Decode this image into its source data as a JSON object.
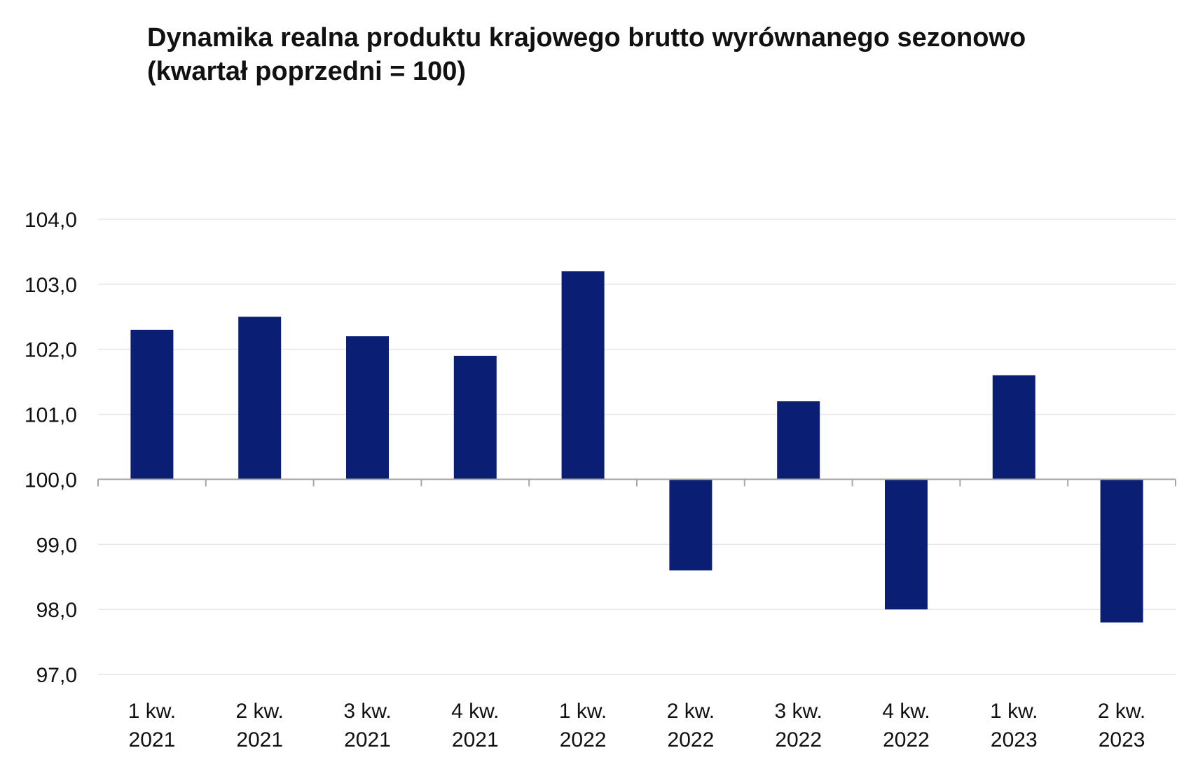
{
  "chart_data": {
    "type": "bar",
    "title_line1": "Dynamika realna produktu krajowego brutto wyrównanego sezonowo",
    "title_line2": "(kwartał poprzedni = 100)",
    "categories": [
      [
        "1 kw.",
        "2021"
      ],
      [
        "2 kw.",
        "2021"
      ],
      [
        "3 kw.",
        "2021"
      ],
      [
        "4 kw.",
        "2021"
      ],
      [
        "1 kw.",
        "2022"
      ],
      [
        "2 kw.",
        "2022"
      ],
      [
        "3 kw.",
        "2022"
      ],
      [
        "4 kw.",
        "2022"
      ],
      [
        "1 kw.",
        "2023"
      ],
      [
        "2 kw.",
        "2023"
      ]
    ],
    "values": [
      102.3,
      102.5,
      102.2,
      101.9,
      103.2,
      98.6,
      101.2,
      98.0,
      101.6,
      97.8
    ],
    "baseline": 100.0,
    "ylim": [
      97.0,
      104.0
    ],
    "yticks": [
      "97,0",
      "98,0",
      "99,0",
      "100,0",
      "101,0",
      "102,0",
      "103,0",
      "104,0"
    ],
    "ytick_values": [
      97,
      98,
      99,
      100,
      101,
      102,
      103,
      104
    ],
    "grid": true,
    "bar_color": "#0a1f73",
    "grid_color": "#e6e6e6",
    "axis_color": "#a6a6a6"
  }
}
